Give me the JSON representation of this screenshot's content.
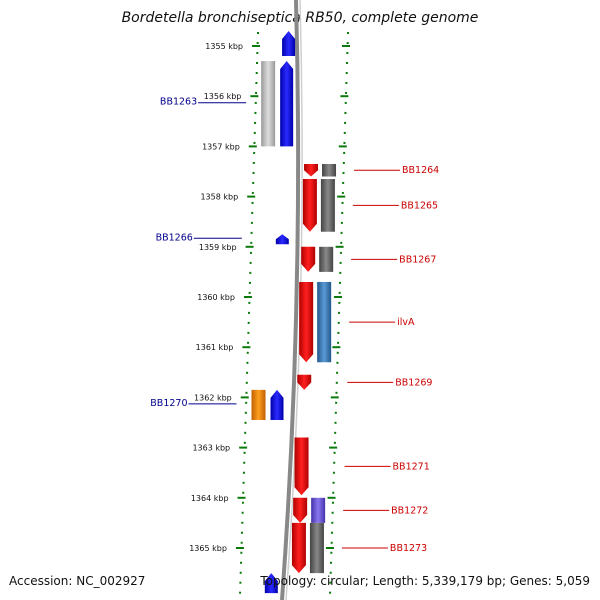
{
  "title": "Bordetella bronchiseptica RB50, complete genome",
  "accession_text": "Accession: NC_002927",
  "topology_text": "Topology: circular; Length: 5,339,179 bp; Genes: 5,059",
  "colors": {
    "forward_label": "#00008b",
    "reverse_label": "#cc0000",
    "forward_gene": "#1010ee",
    "reverse_gene": "#ee1010",
    "ticks": "#0a7a0a",
    "backbone": "#888888"
  },
  "ruler": {
    "unit": "kbp",
    "ticks": [
      "1355 kbp",
      "1356 kbp",
      "1357 kbp",
      "1358 kbp",
      "1359 kbp",
      "1360 kbp",
      "1361 kbp",
      "1362 kbp",
      "1363 kbp",
      "1364 kbp",
      "1365 kbp"
    ]
  },
  "genes": {
    "forward_strand": [
      {
        "label": "BB1263",
        "start_kbp": 1355.3,
        "end_kbp": 1357.0,
        "color": "#1010ee",
        "partner_color": "#bbbbbb"
      },
      {
        "label": "BB1266",
        "start_kbp": 1358.75,
        "end_kbp": 1358.95,
        "color": "#1010ee"
      },
      {
        "label": "BB1270",
        "start_kbp": 1361.85,
        "end_kbp": 1362.45,
        "color": "#1010ee",
        "partner_color": "#ee8800"
      },
      {
        "label": "",
        "start_kbp": 1354.7,
        "end_kbp": 1355.2,
        "color": "#1010ee"
      },
      {
        "label": "",
        "start_kbp": 1365.5,
        "end_kbp": 1365.9,
        "color": "#1010ee"
      }
    ],
    "reverse_strand": [
      {
        "label": "BB1264",
        "start_kbp": 1357.35,
        "end_kbp": 1357.6,
        "color": "#ee1010",
        "partner_color": "#666666"
      },
      {
        "label": "BB1265",
        "start_kbp": 1357.65,
        "end_kbp": 1358.7,
        "color": "#ee1010",
        "partner_color": "#666666"
      },
      {
        "label": "BB1267",
        "start_kbp": 1359.0,
        "end_kbp": 1359.5,
        "color": "#ee1010",
        "partner_color": "#666666"
      },
      {
        "label": "ilvA",
        "start_kbp": 1359.7,
        "end_kbp": 1361.3,
        "color": "#ee1010",
        "partner_color": "#3a7ab8"
      },
      {
        "label": "BB1269",
        "start_kbp": 1361.55,
        "end_kbp": 1361.85,
        "color": "#ee1010"
      },
      {
        "label": "BB1271",
        "start_kbp": 1362.8,
        "end_kbp": 1363.95,
        "color": "#ee1010"
      },
      {
        "label": "BB1272",
        "start_kbp": 1364.0,
        "end_kbp": 1364.5,
        "color": "#ee1010",
        "partner_color": "#6655cc"
      },
      {
        "label": "BB1273",
        "start_kbp": 1364.5,
        "end_kbp": 1365.5,
        "color": "#ee1010",
        "partner_color": "#666666"
      }
    ]
  }
}
